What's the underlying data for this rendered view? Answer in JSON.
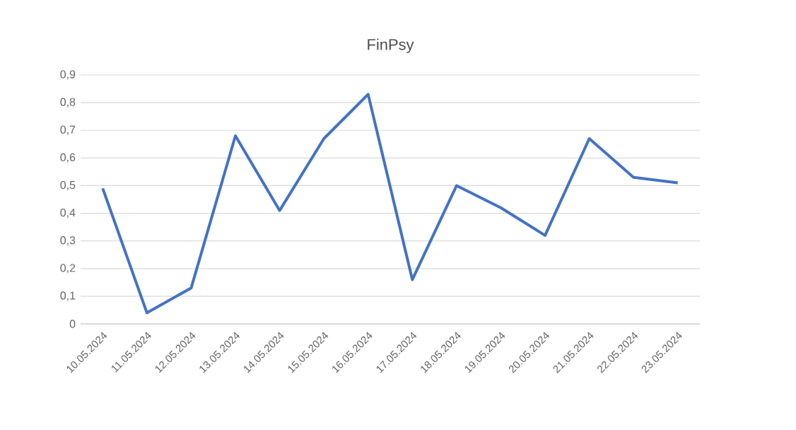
{
  "chart_data": {
    "type": "line",
    "title": "FinPsy",
    "categories": [
      "10.05.2024",
      "11.05.2024",
      "12.05.2024",
      "13.05.2024",
      "14.05.2024",
      "15.05.2024",
      "16.05.2024",
      "17.05.2024",
      "18.05.2024",
      "19.05.2024",
      "20.05.2024",
      "21.05.2024",
      "22.05.2024",
      "23.05.2024"
    ],
    "series": [
      {
        "color": "#4472c4",
        "values": [
          0.49,
          0.04,
          0.13,
          0.68,
          0.41,
          0.67,
          0.83,
          0.16,
          0.5,
          0.42,
          0.32,
          0.67,
          0.53,
          0.51
        ]
      }
    ],
    "ylim": [
      0,
      0.9
    ],
    "yticks": [
      {
        "value": 0,
        "label": "0"
      },
      {
        "value": 0.1,
        "label": "0,1"
      },
      {
        "value": 0.2,
        "label": "0,2"
      },
      {
        "value": 0.3,
        "label": "0,3"
      },
      {
        "value": 0.4,
        "label": "0,4"
      },
      {
        "value": 0.5,
        "label": "0,5"
      },
      {
        "value": 0.6,
        "label": "0,6"
      },
      {
        "value": 0.7,
        "label": "0,7"
      },
      {
        "value": 0.8,
        "label": "0,8"
      },
      {
        "value": 0.9,
        "label": "0,9"
      }
    ],
    "grid": "y",
    "marker": "none",
    "line_style": "solid"
  }
}
